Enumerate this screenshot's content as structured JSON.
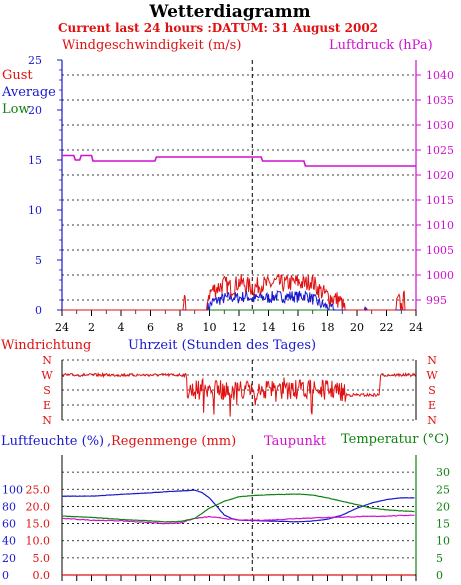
{
  "title": "Wetterdiagramm",
  "subtitle": "Current last 24 hours :DATUM: 31 August 2002",
  "colors": {
    "red": "#e01010",
    "blue": "#1818d0",
    "green": "#108010",
    "magenta": "#d010d0",
    "grid": "#000000"
  },
  "chart_data": [
    {
      "type": "line",
      "ylabel_left": "Windgeschwindigkeit (m/s)",
      "ylabel_right": "Luftdruck (hPa)",
      "xlabel": "Uhrzeit (Stunden des Tages)",
      "x_ticks": [
        "24",
        "2",
        "4",
        "6",
        "8",
        "10",
        "12",
        "14",
        "16",
        "18",
        "20",
        "22",
        "24"
      ],
      "x_range_hours": [
        0,
        24
      ],
      "midnight_marker_hour": 12.9,
      "ylim_left": [
        0,
        25
      ],
      "yticks_left": [
        "0",
        "5",
        "10",
        "15",
        "20",
        "25"
      ],
      "ylim_right": [
        993,
        1043
      ],
      "yticks_right": [
        "995",
        "1000",
        "1005",
        "1010",
        "1015",
        "1020",
        "1025",
        "1030",
        "1035",
        "1040"
      ],
      "legend": [
        "Gust",
        "Average",
        "Low"
      ],
      "series": [
        {
          "name": "Luftdruck (hPa)",
          "axis": "right",
          "color": "magenta",
          "points": [
            [
              0,
              1023.9
            ],
            [
              0.8,
              1023.9
            ],
            [
              0.9,
              1023
            ],
            [
              1.2,
              1023
            ],
            [
              1.3,
              1023.9
            ],
            [
              2,
              1023.9
            ],
            [
              2.1,
              1022.8
            ],
            [
              6.3,
              1022.8
            ],
            [
              6.4,
              1023.6
            ],
            [
              13.5,
              1023.6
            ],
            [
              13.6,
              1022.8
            ],
            [
              16.4,
              1022.8
            ],
            [
              16.5,
              1021.8
            ],
            [
              24,
              1021.8
            ]
          ]
        },
        {
          "name": "Gust",
          "axis": "left",
          "color": "red",
          "sampled": [
            [
              0,
              0
            ],
            [
              8.2,
              0
            ],
            [
              8.3,
              1
            ],
            [
              8.4,
              0
            ],
            [
              9.8,
              0
            ],
            [
              9.9,
              1.5
            ],
            [
              10.2,
              2
            ],
            [
              10.5,
              2.2
            ],
            [
              11,
              2.6
            ],
            [
              11.5,
              2.2
            ],
            [
              12,
              2.8
            ],
            [
              12.5,
              2.5
            ],
            [
              13,
              2.2
            ],
            [
              13.5,
              2.6
            ],
            [
              14,
              2.5
            ],
            [
              14.5,
              2.8
            ],
            [
              15,
              2.6
            ],
            [
              15.5,
              2.7
            ],
            [
              16,
              2.8
            ],
            [
              16.5,
              2.6
            ],
            [
              16.9,
              3
            ],
            [
              17.3,
              2.2
            ],
            [
              17.8,
              1.6
            ],
            [
              18.3,
              1.2
            ],
            [
              18.8,
              1
            ],
            [
              19.2,
              0
            ],
            [
              22.6,
              0
            ],
            [
              22.8,
              1
            ],
            [
              23,
              0.3
            ],
            [
              23.2,
              1.1
            ],
            [
              23.4,
              0
            ]
          ]
        },
        {
          "name": "Average",
          "axis": "left",
          "color": "blue",
          "sampled": [
            [
              0,
              0
            ],
            [
              9.8,
              0
            ],
            [
              10.2,
              0.8
            ],
            [
              10.8,
              1.1
            ],
            [
              11.5,
              1.3
            ],
            [
              12,
              1.2
            ],
            [
              12.5,
              1.4
            ],
            [
              13,
              1.1
            ],
            [
              13.5,
              1.3
            ],
            [
              14,
              1.2
            ],
            [
              14.5,
              1.4
            ],
            [
              15,
              1.3
            ],
            [
              15.5,
              1.4
            ],
            [
              16,
              1.3
            ],
            [
              16.5,
              1.5
            ],
            [
              17,
              1.1
            ],
            [
              17.5,
              0.6
            ],
            [
              18,
              0.3
            ],
            [
              18.5,
              0
            ],
            [
              20.5,
              0
            ],
            [
              20.6,
              0.3
            ],
            [
              20.7,
              0
            ],
            [
              24,
              0
            ]
          ]
        },
        {
          "name": "Low",
          "axis": "left",
          "color": "green",
          "sampled": [
            [
              0,
              0
            ],
            [
              24,
              0
            ]
          ]
        }
      ]
    },
    {
      "type": "line",
      "ylabel": "Windrichtung",
      "yticks": [
        "N",
        "W",
        "S",
        "E",
        "N"
      ],
      "series": [
        {
          "name": "Windrichtung",
          "color": "red",
          "sampled": [
            [
              0,
              "W"
            ],
            [
              8.4,
              "W"
            ],
            [
              8.5,
              "S"
            ],
            [
              10,
              "S"
            ],
            [
              11,
              "S"
            ],
            [
              12.5,
              "S"
            ],
            [
              14,
              "S"
            ],
            [
              16,
              "S"
            ],
            [
              17,
              "S"
            ],
            [
              18.5,
              "S"
            ],
            [
              19.4,
              "SE"
            ],
            [
              21.5,
              "SE"
            ],
            [
              21.6,
              "W"
            ],
            [
              24,
              "W"
            ]
          ]
        }
      ]
    },
    {
      "type": "line",
      "ylabel_left": "Luftfeuchte (%)",
      "ylabel_left2": "Regenmenge (mm)",
      "ylabel_mid": "Taupunkt",
      "ylabel_right": "Temperatur (°C)",
      "ylim_left": [
        0,
        140
      ],
      "yticks_left": [
        "0",
        "20",
        "40",
        "60",
        "80",
        "100"
      ],
      "ylim_left2": [
        0,
        35
      ],
      "yticks_left2": [
        "0.0",
        "5.0",
        "10.0",
        "15.0",
        "20.0",
        "25.0"
      ],
      "ylim_right": [
        0,
        35
      ],
      "yticks_right": [
        "0",
        "5",
        "10",
        "15",
        "20",
        "25",
        "30"
      ],
      "series": [
        {
          "name": "Luftfeuchte (%)",
          "color": "blue",
          "points": [
            [
              0,
              92
            ],
            [
              2,
              92
            ],
            [
              4,
              94
            ],
            [
              6,
              96
            ],
            [
              8,
              98
            ],
            [
              9,
              99
            ],
            [
              9.5,
              96
            ],
            [
              10,
              90
            ],
            [
              10.5,
              80
            ],
            [
              11,
              70
            ],
            [
              11.5,
              66
            ],
            [
              12,
              64
            ],
            [
              14,
              63
            ],
            [
              16,
              62
            ],
            [
              17,
              63
            ],
            [
              18,
              65
            ],
            [
              19,
              70
            ],
            [
              20,
              78
            ],
            [
              21,
              84
            ],
            [
              22,
              88
            ],
            [
              23,
              90
            ],
            [
              24,
              90
            ]
          ]
        },
        {
          "name": "Taupunkt",
          "color": "magenta",
          "points": [
            [
              0,
              16.5
            ],
            [
              2,
              16
            ],
            [
              4,
              15.8
            ],
            [
              6,
              15.3
            ],
            [
              7,
              15
            ],
            [
              8,
              15.2
            ],
            [
              9,
              16.5
            ],
            [
              10,
              17
            ],
            [
              11,
              16.5
            ],
            [
              12,
              16
            ],
            [
              14,
              16
            ],
            [
              16,
              16.5
            ],
            [
              18,
              16.8
            ],
            [
              20,
              17
            ],
            [
              22,
              17.2
            ],
            [
              24,
              17.5
            ]
          ]
        },
        {
          "name": "Temperatur",
          "color": "green",
          "points": [
            [
              0,
              17.2
            ],
            [
              2,
              16.8
            ],
            [
              4,
              16.2
            ],
            [
              6,
              15.8
            ],
            [
              7,
              15.5
            ],
            [
              8,
              15.6
            ],
            [
              9,
              16.5
            ],
            [
              10,
              19.5
            ],
            [
              11,
              21.5
            ],
            [
              12,
              22.8
            ],
            [
              13,
              23.2
            ],
            [
              14,
              23.4
            ],
            [
              15,
              23.5
            ],
            [
              16,
              23.6
            ],
            [
              17,
              23.3
            ],
            [
              18,
              22.5
            ],
            [
              19,
              21.5
            ],
            [
              20,
              20.5
            ],
            [
              21,
              19.5
            ],
            [
              22,
              19
            ],
            [
              23,
              18.7
            ],
            [
              24,
              18.5
            ]
          ]
        },
        {
          "name": "Regenmenge",
          "color": "red",
          "points": [
            [
              0,
              0
            ],
            [
              24,
              0
            ]
          ]
        }
      ]
    }
  ]
}
